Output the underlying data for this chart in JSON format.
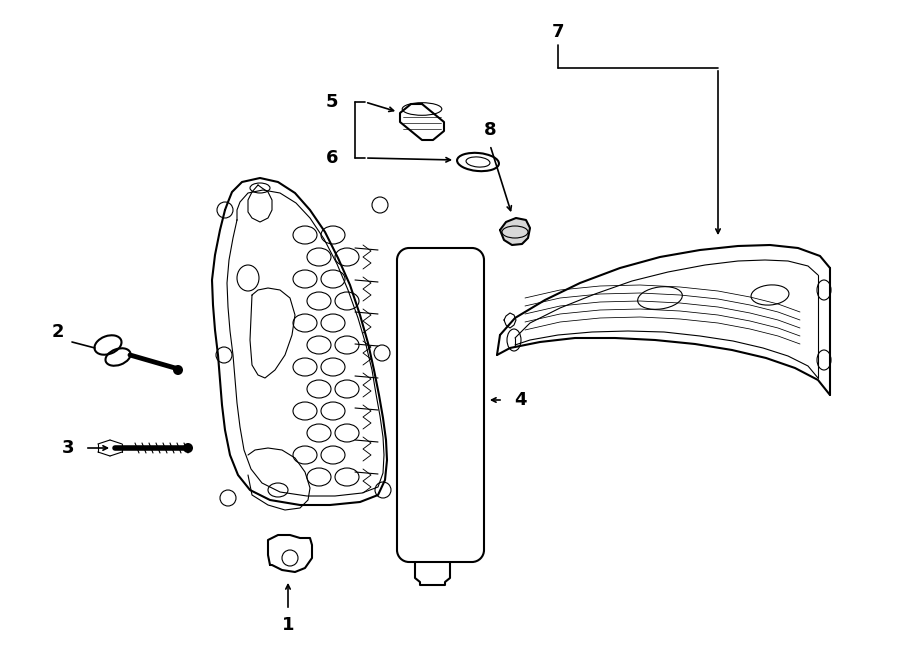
{
  "figsize": [
    9.0,
    6.61
  ],
  "dpi": 100,
  "background_color": "#ffffff",
  "line_color": "#000000",
  "font_size": 12,
  "lw_main": 1.5,
  "lw_thin": 0.8,
  "lw_callout": 1.2
}
